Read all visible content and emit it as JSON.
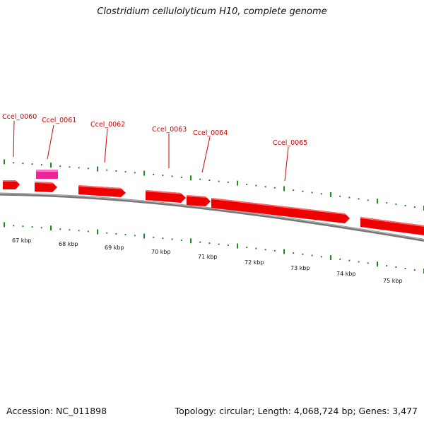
{
  "title": "Clostridium cellulolyticum H10, complete genome",
  "footer": {
    "accession_text": "Accession: NC_011898",
    "summary_text": "Topology: circular; Length: 4,068,724 bp; Genes: 3,477"
  },
  "colors": {
    "gene_forward": "#ee0000",
    "gene_rna": "#ee2299",
    "gene_label": "#cc0000",
    "tick_dots": "#228822",
    "backbone": "#888888"
  },
  "scale_labels": [
    "67 kbp",
    "68 kbp",
    "69 kbp",
    "70 kbp",
    "71 kbp",
    "72 kbp",
    "73 kbp",
    "74 kbp",
    "75 kbp"
  ],
  "gene_labels": [
    "Ccel_0060",
    "Ccel_0061",
    "Ccel_0062",
    "Ccel_0063",
    "Ccel_0064",
    "Ccel_0065"
  ]
}
